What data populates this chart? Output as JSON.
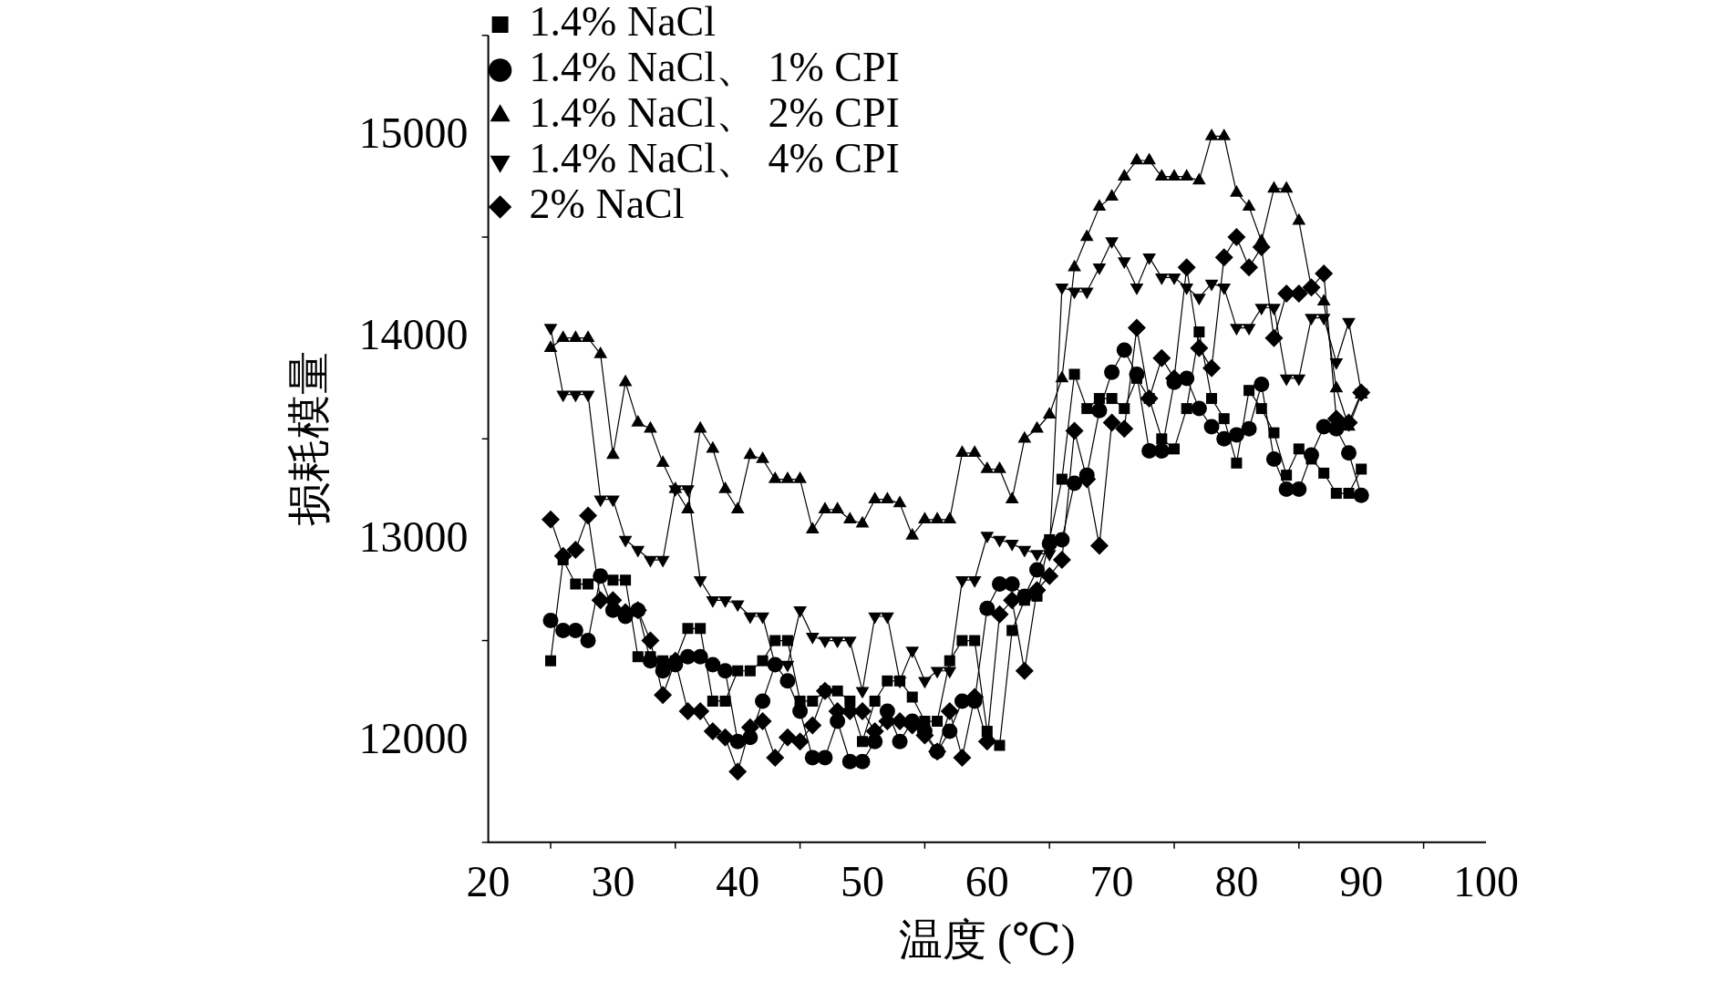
{
  "chart_data": {
    "type": "line",
    "xlabel": "温度 (℃)",
    "ylabel": "损耗模量",
    "xlim": [
      20,
      100
    ],
    "xticks": [
      20,
      30,
      40,
      50,
      60,
      70,
      80,
      90,
      100
    ],
    "ylim": [
      11500,
      15500
    ],
    "yticks": [
      12000,
      13000,
      14000,
      15000
    ],
    "legend": "top left",
    "line_style": "solid",
    "x": [
      25,
      26,
      27,
      28,
      29,
      30,
      31,
      32,
      33,
      34,
      35,
      36,
      37,
      38,
      39,
      40,
      41,
      42,
      43,
      44,
      45,
      46,
      47,
      48,
      49,
      50,
      51,
      52,
      53,
      54,
      55,
      56,
      57,
      58,
      59,
      60,
      61,
      62,
      63,
      64,
      65,
      66,
      67,
      68,
      69,
      70,
      71,
      72,
      73,
      74,
      75,
      76,
      77,
      78,
      79,
      80,
      81,
      82,
      83,
      84,
      85,
      86,
      87,
      88,
      89,
      90
    ],
    "series": [
      {
        "name": "1.4% NaCl",
        "color": "#000000",
        "marker": "square",
        "values": [
          12400,
          12900,
          12780,
          12780,
          12820,
          12800,
          12800,
          12420,
          12420,
          12400,
          12400,
          12560,
          12560,
          12200,
          12200,
          12350,
          12350,
          12400,
          12500,
          12500,
          12200,
          12200,
          12250,
          12250,
          12200,
          12000,
          12200,
          12300,
          12300,
          12220,
          12100,
          12100,
          12400,
          12500,
          12500,
          12050,
          11980,
          12550,
          12700,
          12720,
          13000,
          13300,
          13820,
          13650,
          13700,
          13700,
          13650,
          13800,
          13700,
          13500,
          13450,
          13650,
          14030,
          13700,
          13600,
          13380,
          13740,
          13650,
          13530,
          13320,
          13450,
          13400,
          13330,
          13230,
          13230,
          13350
        ]
      },
      {
        "name": "1.4% NaCl、 1% CPI",
        "color": "#000000",
        "marker": "circle",
        "values": [
          12600,
          12550,
          12550,
          12500,
          12820,
          12650,
          12620,
          12650,
          12400,
          12350,
          12380,
          12420,
          12420,
          12380,
          12350,
          12000,
          12020,
          12200,
          12380,
          12300,
          12150,
          11920,
          11920,
          12100,
          11900,
          11900,
          12000,
          12150,
          12000,
          12100,
          12050,
          11950,
          12050,
          12200,
          12200,
          12660,
          12780,
          12780,
          12720,
          12850,
          12980,
          13000,
          13280,
          13320,
          13640,
          13830,
          13940,
          13820,
          13440,
          13440,
          13780,
          13800,
          13650,
          13560,
          13500,
          13520,
          13550,
          13770,
          13400,
          13250,
          13250,
          13420,
          13560,
          13550,
          13430,
          13220
        ]
      },
      {
        "name": "1.4% NaCl、 2% CPI",
        "color": "#000000",
        "marker": "triangle",
        "values": [
          13950,
          14000,
          14000,
          14000,
          13920,
          13420,
          13780,
          13580,
          13550,
          13380,
          13250,
          13150,
          13550,
          13450,
          13250,
          13150,
          13420,
          13400,
          13300,
          13300,
          13300,
          13050,
          13150,
          13150,
          13100,
          13080,
          13200,
          13200,
          13180,
          13020,
          13100,
          13100,
          13100,
          13430,
          13430,
          13350,
          13350,
          13200,
          13500,
          13550,
          13620,
          13800,
          14350,
          14500,
          14650,
          14700,
          14800,
          14880,
          14880,
          14800,
          14800,
          14800,
          14780,
          15000,
          15000,
          14720,
          14650,
          14480,
          14740,
          14740,
          14580,
          14250,
          14180,
          13750,
          13560,
          13720
        ]
      },
      {
        "name": "1.4% NaCl、 4% CPI",
        "color": "#000000",
        "marker": "triangle-down",
        "values": [
          14050,
          13720,
          13720,
          13720,
          13200,
          13200,
          13000,
          12950,
          12900,
          12900,
          13250,
          13250,
          12800,
          12700,
          12700,
          12680,
          12620,
          12620,
          12380,
          12380,
          12650,
          12520,
          12500,
          12500,
          12500,
          12250,
          12620,
          12620,
          12300,
          12450,
          12300,
          12350,
          12350,
          12800,
          12800,
          13020,
          13000,
          12980,
          12950,
          12930,
          12930,
          14250,
          14230,
          14230,
          14350,
          14480,
          14380,
          14250,
          14400,
          14300,
          14300,
          14250,
          14200,
          14270,
          14250,
          14050,
          14050,
          14150,
          14150,
          13800,
          13800,
          14100,
          14100,
          13880,
          14080,
          13730
        ]
      },
      {
        "name": "2% NaCl",
        "color": "#000000",
        "marker": "diamond",
        "values": [
          13100,
          12920,
          12950,
          13120,
          12700,
          12700,
          12640,
          12650,
          12500,
          12230,
          12400,
          12150,
          12150,
          12050,
          12020,
          11850,
          12070,
          12100,
          11920,
          12020,
          12000,
          12080,
          12250,
          12150,
          12150,
          12150,
          12050,
          12100,
          12100,
          12080,
          12030,
          11950,
          12150,
          11920,
          12220,
          12000,
          12630,
          12700,
          12350,
          12750,
          12820,
          12900,
          13540,
          13300,
          12970,
          13580,
          13550,
          14050,
          13700,
          13900,
          13800,
          14350,
          13950,
          13850,
          14400,
          14500,
          14350,
          14450,
          14000,
          14220,
          14220,
          14250,
          14320,
          13600,
          13580,
          13730
        ]
      }
    ]
  }
}
